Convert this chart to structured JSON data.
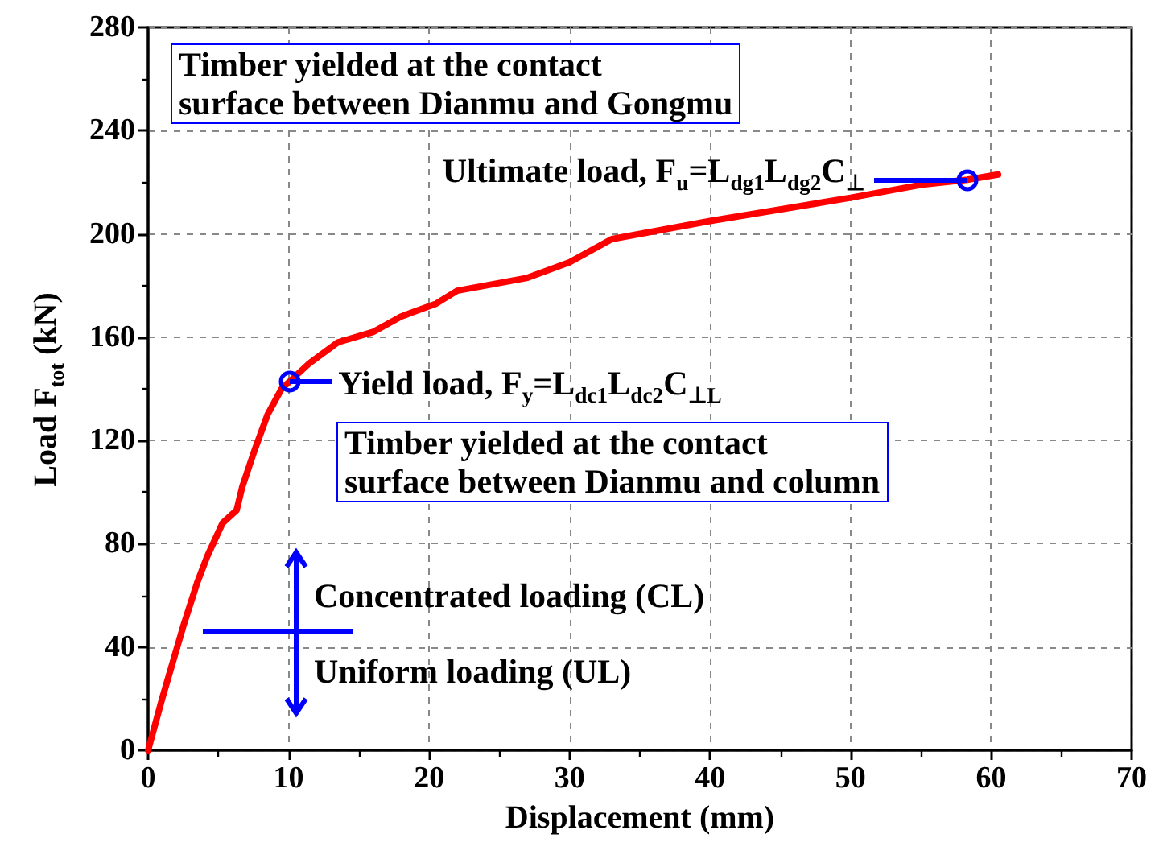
{
  "chart_data": {
    "type": "line",
    "xlabel": "Displacement (mm)",
    "ylabel": "Load F$_{tot}$ (kN)",
    "x": [
      0,
      1,
      2.5,
      3.5,
      4.2,
      5.3,
      6.3,
      6.7,
      7.5,
      8.5,
      9.5,
      10.1,
      11.5,
      13.5,
      16,
      18,
      20.5,
      22,
      27,
      30,
      33,
      40,
      50,
      55,
      58.3,
      60.5
    ],
    "series": [
      {
        "color": "#ff0000",
        "values": [
          0,
          20,
          48,
          65,
          75,
          88,
          93,
          102,
          115,
          130,
          140,
          143,
          150,
          158,
          162,
          168,
          173,
          178,
          183,
          189,
          198,
          205,
          214,
          219,
          221,
          223
        ]
      }
    ],
    "xlim": [
      0,
      70
    ],
    "xticks": [
      0,
      10,
      20,
      30,
      40,
      50,
      60,
      70
    ],
    "ylim": [
      0,
      280
    ],
    "yticks": [
      0,
      40,
      80,
      120,
      160,
      200,
      240,
      280
    ],
    "grid": true,
    "marker": "none",
    "line_style": "solid",
    "annotations": [
      {
        "text": "Yield load, F$_{y}$=L$_{dc1}$L$_{dc2}$C$_{⊥L}$",
        "x": 10.1,
        "y": 143
      },
      {
        "text": "Ultimate load, F$_{u}$=L$_{dg1}$L$_{dg2}$C$_{⊥}$",
        "x": 58.3,
        "y": 221
      },
      "Timber yielded at the contact\nsurface between Dianmu and Gongmu",
      "Timber yielded at the contact\nsurface between Dianmu and column",
      "Concentrated loading (CL)",
      "Uniform loading (UL)"
    ]
  }
}
